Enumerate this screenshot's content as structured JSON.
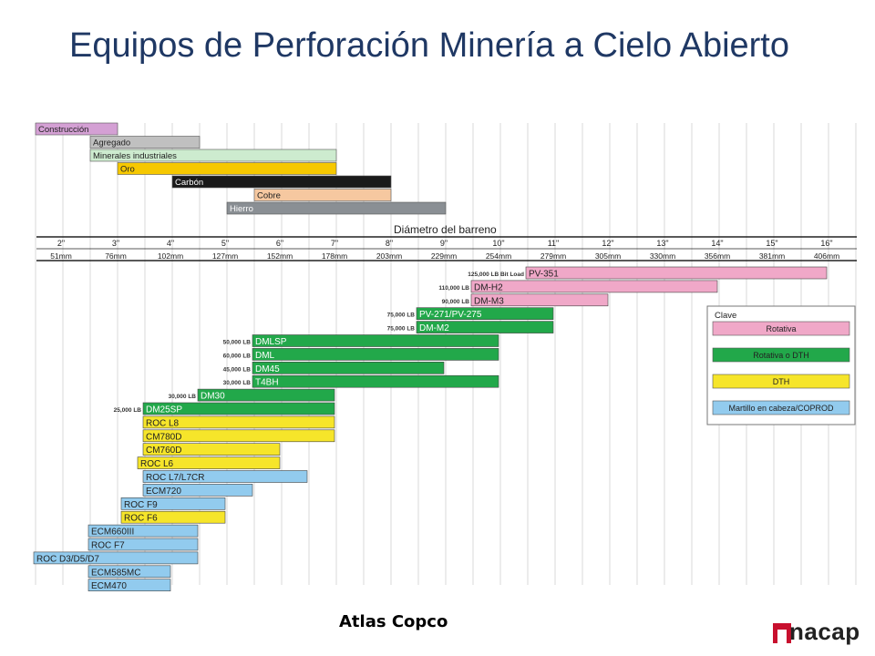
{
  "title": "Equipos de Perforación Minería a Cielo Abierto",
  "footer": {
    "credit": "Atlas Copco",
    "logo_text": "nacap"
  },
  "colors": {
    "rotativa": "#f0a8c8",
    "rotativa_dth": "#22a84a",
    "dth": "#f6e52a",
    "martillo": "#92cbee"
  },
  "chart_data": {
    "type": "bar",
    "subtitle": "Diámetro del barreno",
    "sizes_in": [
      "2\"",
      "3\"",
      "4\"",
      "5\"",
      "6\"",
      "7\"",
      "8\"",
      "9\"",
      "10\"",
      "11\"",
      "12\"",
      "13\"",
      "14\"",
      "15\"",
      "16\""
    ],
    "sizes_mm": [
      "51mm",
      "76mm",
      "102mm",
      "127mm",
      "152mm",
      "178mm",
      "203mm",
      "229mm",
      "254mm",
      "279mm",
      "305mm",
      "330mm",
      "356mm",
      "381mm",
      "406mm"
    ],
    "applications": [
      {
        "label": "Construcción",
        "from": 2,
        "to": 4,
        "color": "#d4a0d4",
        "text_color": "#222222"
      },
      {
        "label": "Agregado",
        "from": 3,
        "to": 7,
        "color": "#c0c0c0",
        "text_color": "#222222"
      },
      {
        "label": "Minerales industriales",
        "from": 3,
        "to": 12,
        "color": "#cdebcf",
        "text_color": "#222222"
      },
      {
        "label": "Oro",
        "from": 4,
        "to": 12,
        "color": "#f6c800",
        "text_color": "#222222"
      },
      {
        "label": "Carbón",
        "from": 6,
        "to": 14,
        "color": "#1a1a1a",
        "text_color": "#ffffff"
      },
      {
        "label": "Cobre",
        "from": 9,
        "to": 14,
        "color": "#f6c8a0",
        "text_color": "#222222"
      },
      {
        "label": "Hierro",
        "from": 8,
        "to": 16,
        "color": "#8a8f94",
        "text_color": "#ffffff"
      }
    ],
    "rigs": [
      {
        "name": "PV-351",
        "from": 11,
        "to": 16,
        "type": "rotativa",
        "load": "125,000 LB Bit Load"
      },
      {
        "name": "DM-H2",
        "from": 10,
        "to": 14,
        "type": "rotativa",
        "load": "110,000 LB"
      },
      {
        "name": "DM-M3",
        "from": 10,
        "to": 12,
        "type": "rotativa",
        "load": "90,000 LB"
      },
      {
        "name": "PV-271/PV-275",
        "from": 9,
        "to": 11,
        "type": "rotativa_dth",
        "load": "75,000 LB"
      },
      {
        "name": "DM-M2",
        "from": 9,
        "to": 11,
        "type": "rotativa_dth",
        "load": "75,000 LB"
      },
      {
        "name": "DMLSP",
        "from": 6,
        "to": 10,
        "type": "rotativa_dth",
        "load": "50,000 LB"
      },
      {
        "name": "DML",
        "from": 6,
        "to": 10,
        "type": "rotativa_dth",
        "load": "60,000 LB"
      },
      {
        "name": "DM45",
        "from": 6,
        "to": 9,
        "type": "rotativa_dth",
        "load": "45,000 LB"
      },
      {
        "name": "T4BH",
        "from": 6,
        "to": 10,
        "type": "rotativa_dth",
        "load": "30,000 LB"
      },
      {
        "name": "DM30",
        "from": 5,
        "to": 7,
        "type": "rotativa_dth",
        "load": "30,000 LB"
      },
      {
        "name": "DM25SP",
        "from": 4,
        "to": 7,
        "type": "rotativa_dth",
        "load": "25,000 LB"
      },
      {
        "name": "ROC L8",
        "from": 4,
        "to": 7,
        "type": "dth",
        "load": ""
      },
      {
        "name": "CM780D",
        "from": 4,
        "to": 7,
        "type": "dth",
        "load": ""
      },
      {
        "name": "CM760D",
        "from": 4,
        "to": 6,
        "type": "dth",
        "load": ""
      },
      {
        "name": "ROC L6",
        "from": 3.9,
        "to": 6,
        "type": "dth",
        "load": ""
      },
      {
        "name": "ROC L7/L7CR",
        "from": 4,
        "to": 6.5,
        "type": "martillo",
        "load": ""
      },
      {
        "name": "ECM720",
        "from": 4,
        "to": 5.5,
        "type": "martillo",
        "load": ""
      },
      {
        "name": "ROC F9",
        "from": 3.6,
        "to": 5,
        "type": "martillo",
        "load": ""
      },
      {
        "name": "ROC F6",
        "from": 3.6,
        "to": 5,
        "type": "dth",
        "load": ""
      },
      {
        "name": "ECM660III",
        "from": 3,
        "to": 4.5,
        "type": "martillo",
        "load": ""
      },
      {
        "name": "ROC F7",
        "from": 3,
        "to": 4.5,
        "type": "martillo",
        "load": ""
      },
      {
        "name": "ROC D3/D5/D7",
        "from": 2,
        "to": 4.5,
        "type": "martillo",
        "load": ""
      },
      {
        "name": "ECM585MC",
        "from": 3,
        "to": 4,
        "type": "martillo",
        "load": ""
      },
      {
        "name": "ECM470",
        "from": 3,
        "to": 4,
        "type": "martillo",
        "load": ""
      }
    ],
    "legend": {
      "title": "Clave",
      "placement": "right",
      "items": [
        {
          "label": "Rotativa",
          "type": "rotativa"
        },
        {
          "label": "Rotativa o DTH",
          "type": "rotativa_dth"
        },
        {
          "label": "DTH",
          "type": "dth"
        },
        {
          "label": "Martillo en cabeza/COPROD",
          "type": "martillo"
        }
      ]
    }
  }
}
